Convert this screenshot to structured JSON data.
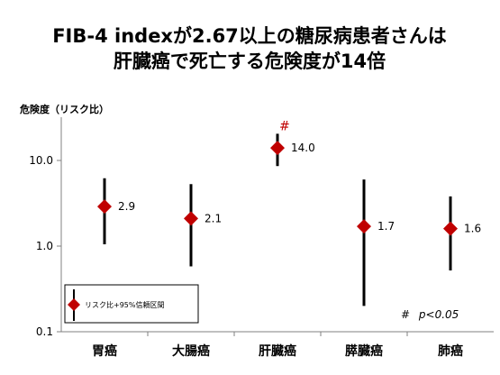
{
  "title_line1": "FIB-4 indexが2.67以上の糖尿病患者さんは",
  "title_line2": "肝臓癌で死亡する危険度が14倍",
  "chart_data": {
    "type": "scatter",
    "ylabel": "危険度（リスク比）",
    "yscale": "log",
    "ylim": [
      0.1,
      100
    ],
    "yticks": [
      "0.1",
      "1.0",
      "10.0"
    ],
    "categories": [
      "胃癌",
      "大腸癌",
      "肝臓癌",
      "膵臓癌",
      "肺癌"
    ],
    "values": [
      2.9,
      2.1,
      14.0,
      1.7,
      1.6
    ],
    "value_labels": [
      "2.9",
      "2.1",
      "14.0",
      "1.7",
      "1.6"
    ],
    "ci_low": [
      1.05,
      0.58,
      8.6,
      0.2,
      0.52
    ],
    "ci_high": [
      6.2,
      5.3,
      20.5,
      6.0,
      3.8
    ],
    "significant_marker": "#",
    "significant_index": 2,
    "legend": "リスク比+95%信頼区間",
    "note_symbol": "#",
    "note_text": "p<0.05",
    "grid": false,
    "marker_color": "#c00000"
  }
}
